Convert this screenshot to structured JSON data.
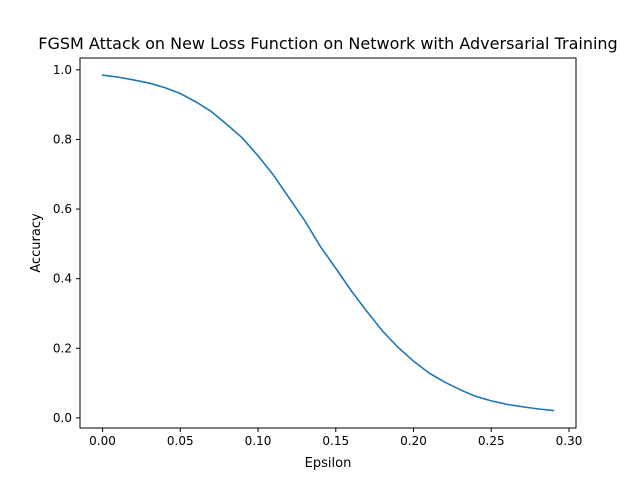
{
  "chart_data": {
    "type": "line",
    "title": "FGSM Attack on New Loss Function on Network with Adversarial Training",
    "xlabel": "Epsilon",
    "ylabel": "Accuracy",
    "xlim": [
      -0.0145,
      0.3045
    ],
    "ylim": [
      -0.029,
      1.034
    ],
    "xticks": [
      0.0,
      0.05,
      0.1,
      0.15,
      0.2,
      0.25,
      0.3
    ],
    "xtick_labels": [
      "0.00",
      "0.05",
      "0.10",
      "0.15",
      "0.20",
      "0.25",
      "0.30"
    ],
    "yticks": [
      0.0,
      0.2,
      0.4,
      0.6,
      0.8,
      1.0
    ],
    "ytick_labels": [
      "0.0",
      "0.2",
      "0.4",
      "0.6",
      "0.8",
      "1.0"
    ],
    "grid": false,
    "series": [
      {
        "color": "#1f77b4",
        "x": [
          0.0,
          0.01,
          0.02,
          0.03,
          0.04,
          0.05,
          0.06,
          0.07,
          0.08,
          0.09,
          0.1,
          0.11,
          0.12,
          0.13,
          0.14,
          0.15,
          0.16,
          0.17,
          0.18,
          0.19,
          0.2,
          0.21,
          0.22,
          0.23,
          0.24,
          0.25,
          0.26,
          0.27,
          0.28,
          0.29
        ],
        "y": [
          0.985,
          0.979,
          0.971,
          0.962,
          0.949,
          0.932,
          0.908,
          0.88,
          0.843,
          0.804,
          0.753,
          0.697,
          0.632,
          0.567,
          0.493,
          0.43,
          0.365,
          0.306,
          0.25,
          0.203,
          0.163,
          0.129,
          0.103,
          0.081,
          0.062,
          0.049,
          0.039,
          0.032,
          0.026,
          0.021
        ]
      }
    ]
  }
}
